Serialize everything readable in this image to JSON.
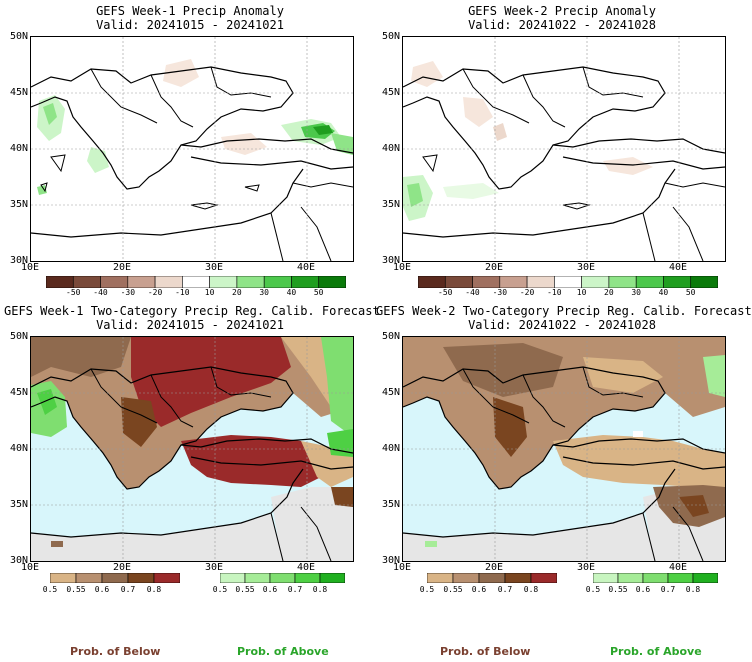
{
  "panels": [
    {
      "id": "tl",
      "title": "GEFS Week-1 Precip Anomaly",
      "valid": "Valid: 20241015 - 20241021"
    },
    {
      "id": "tr",
      "title": "GEFS Week-2 Precip Anomaly",
      "valid": "Valid: 20241022 - 20241028"
    },
    {
      "id": "bl",
      "title": "GEFS Week-1 Two-Category Precip Reg. Calib. Forecast",
      "valid": "Valid: 20241015 - 20241021"
    },
    {
      "id": "br",
      "title": "GEFS Week-2 Two-Category Precip Reg. Calib. Forecast",
      "valid": "Valid: 20241022 - 20241028"
    }
  ],
  "axes": {
    "lat_labels": [
      "50N",
      "45N",
      "40N",
      "35N",
      "30N"
    ],
    "lon_labels": [
      "10E",
      "20E",
      "30E",
      "40E"
    ]
  },
  "anomaly_colorbar": {
    "labels": [
      "-50",
      "-40",
      "-30",
      "-20",
      "-10",
      "10",
      "20",
      "30",
      "40",
      "50"
    ],
    "colors": [
      "#5a2a1e",
      "#7a4a3a",
      "#a07060",
      "#c8a090",
      "#ecd8cc",
      "#ffffff",
      "#ccf5c8",
      "#8fe488",
      "#4cc84c",
      "#1f9e1f",
      "#0a7a0a"
    ]
  },
  "prob_colorbar_below": {
    "labels": [
      "0.5",
      "0.55",
      "0.6",
      "0.7",
      "0.8"
    ],
    "colors": [
      "#d9b486",
      "#b89070",
      "#8f6a4e",
      "#7a4520",
      "#9a2a2a"
    ]
  },
  "prob_colorbar_above": {
    "labels": [
      "0.5",
      "0.55",
      "0.6",
      "0.7",
      "0.8"
    ],
    "colors": [
      "#c8f5c0",
      "#a6ec98",
      "#7fde70",
      "#4ed044",
      "#20b020"
    ]
  },
  "footer": {
    "below_left": "Prob. of Below",
    "above_left": "Prob. of Above",
    "below_right": "Prob. of Below",
    "above_right": "Prob. of Above"
  },
  "colors": {
    "below": "#7a4030",
    "above": "#2aa52a",
    "sea_tint": "#d8f6fb",
    "no_data": "#e6e6e6"
  }
}
